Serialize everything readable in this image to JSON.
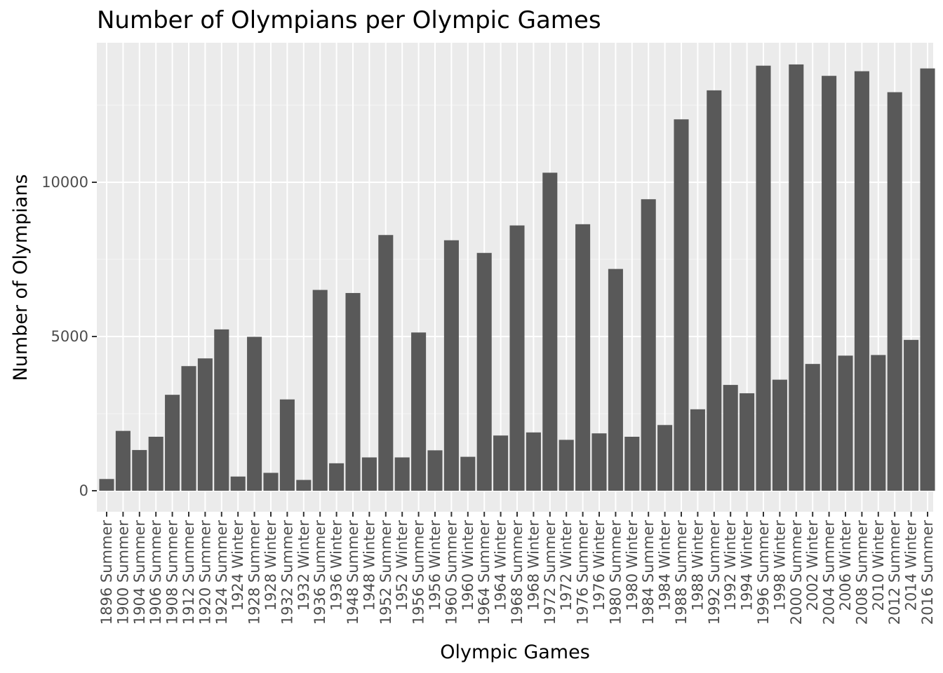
{
  "chart_data": {
    "type": "bar",
    "title": "Number of Olympians per Olympic Games",
    "xlabel": "Olympic Games",
    "ylabel": "Number of Olympians",
    "ylim": [
      -700,
      14500
    ],
    "yticks": [
      0,
      5000,
      10000
    ],
    "grid": true,
    "legend": "none",
    "categories": [
      "1896 Summer",
      "1900 Summer",
      "1904 Summer",
      "1906 Summer",
      "1908 Summer",
      "1912 Summer",
      "1920 Summer",
      "1924 Summer",
      "1924 Winter",
      "1928 Summer",
      "1928 Winter",
      "1932 Summer",
      "1932 Winter",
      "1936 Summer",
      "1936 Winter",
      "1948 Summer",
      "1948 Winter",
      "1952 Summer",
      "1952 Winter",
      "1956 Summer",
      "1956 Winter",
      "1960 Summer",
      "1960 Winter",
      "1964 Summer",
      "1964 Winter",
      "1968 Summer",
      "1968 Winter",
      "1972 Summer",
      "1972 Winter",
      "1976 Summer",
      "1976 Winter",
      "1980 Summer",
      "1980 Winter",
      "1984 Summer",
      "1984 Winter",
      "1988 Summer",
      "1988 Winter",
      "1992 Summer",
      "1992 Winter",
      "1994 Winter",
      "1996 Summer",
      "1998 Winter",
      "2000 Summer",
      "2002 Winter",
      "2004 Summer",
      "2006 Winter",
      "2008 Summer",
      "2010 Winter",
      "2012 Summer",
      "2014 Winter",
      "2016 Summer"
    ],
    "values": [
      380,
      1940,
      1320,
      1750,
      3110,
      4040,
      4290,
      5230,
      460,
      4990,
      580,
      2960,
      350,
      6510,
      890,
      6410,
      1080,
      8290,
      1080,
      5130,
      1310,
      8120,
      1100,
      7710,
      1790,
      8600,
      1890,
      10310,
      1650,
      8640,
      1860,
      7190,
      1750,
      9450,
      2130,
      12040,
      2640,
      12980,
      3430,
      3160,
      13780,
      3600,
      13820,
      4110,
      13450,
      4380,
      13600,
      4400,
      12920,
      4890,
      13690
    ],
    "colors": {
      "bar": "#595959",
      "panel": "#ebebeb",
      "grid_major": "#ffffff",
      "grid_minor": "#f5f5f5",
      "tick": "#333333"
    }
  }
}
